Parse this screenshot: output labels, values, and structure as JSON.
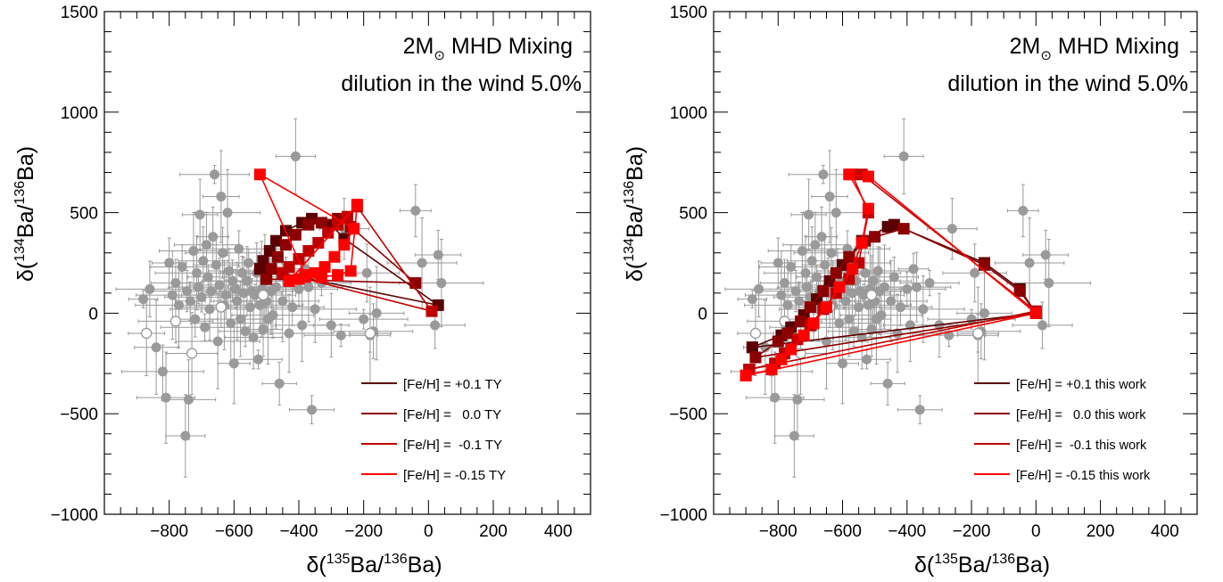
{
  "figure": {
    "background": "#ffffff",
    "axis_color": "#000000",
    "data_color": "#9a9a9a"
  },
  "chart_data": [
    {
      "type": "scatter",
      "title": "",
      "annotation": {
        "line1_prefix": "2M",
        "line1_sub": "⊙",
        "line1_suffix": " MHD Mixing",
        "line2": "dilution in the wind 5.0%"
      },
      "xlabel": {
        "pre": "δ(",
        "sup1": "135",
        "mid": "Ba/",
        "sup2": "136",
        "post": "Ba)"
      },
      "ylabel": {
        "pre": "δ(",
        "sup1": "134",
        "mid": "Ba/",
        "sup2": "136",
        "post": "Ba)"
      },
      "xlim": [
        -1000,
        500
      ],
      "ylim": [
        -1000,
        1500
      ],
      "xticks": [
        -800,
        -600,
        -400,
        -200,
        0,
        200,
        400
      ],
      "xtick_labels": [
        "−800",
        "−600",
        "−400",
        "−200",
        "0",
        "200",
        "400"
      ],
      "yticks": [
        -1000,
        -500,
        0,
        500,
        1000,
        1500
      ],
      "ytick_labels": [
        "−1000",
        "−500",
        "0",
        "500",
        "1000",
        "1500"
      ],
      "legend_position": "bottom-right",
      "series": [
        {
          "name": "[Fe/H] = +0.1 TY",
          "color": "#5a0000",
          "x": [
            -520,
            -510,
            -490,
            -470,
            -440,
            -390,
            -360,
            -300,
            -260,
            30,
            -520
          ],
          "y": [
            220,
            260,
            310,
            360,
            410,
            450,
            470,
            440,
            370,
            40,
            220
          ]
        },
        {
          "name": "[Fe/H] =   0.0 TY",
          "color": "#8b0000",
          "x": [
            -500,
            -485,
            -465,
            -440,
            -410,
            -370,
            -330,
            -280,
            -240,
            -40,
            -500
          ],
          "y": [
            170,
            220,
            280,
            340,
            390,
            440,
            450,
            470,
            430,
            150,
            170
          ]
        },
        {
          "name": "[Fe/H] =  -0.1 TY",
          "color": "#c00000",
          "x": [
            -450,
            -430,
            -400,
            -370,
            -340,
            -310,
            -280,
            -250,
            -220,
            10,
            -450
          ],
          "y": [
            200,
            230,
            270,
            310,
            350,
            400,
            440,
            480,
            530,
            10,
            200
          ]
        },
        {
          "name": "[Fe/H] = -0.15 TY",
          "color": "#ff0000",
          "x": [
            -430,
            -400,
            -380,
            -350,
            -320,
            -290,
            -260,
            -230,
            -520,
            -380,
            -330,
            -280,
            -240,
            -220,
            -430
          ],
          "y": [
            160,
            170,
            180,
            200,
            230,
            280,
            340,
            420,
            690,
            190,
            180,
            190,
            210,
            540,
            160
          ]
        }
      ]
    },
    {
      "type": "scatter",
      "title": "",
      "annotation": {
        "line1_prefix": "2M",
        "line1_sub": "⊙",
        "line1_suffix": " MHD Mixing",
        "line2": "dilution in the wind 5.0%"
      },
      "xlabel": {
        "pre": "δ(",
        "sup1": "135",
        "mid": "Ba/",
        "sup2": "136",
        "post": "Ba)"
      },
      "ylabel": {
        "pre": "δ(",
        "sup1": "134",
        "mid": "Ba/",
        "sup2": "136",
        "post": "Ba)"
      },
      "xlim": [
        -1000,
        500
      ],
      "ylim": [
        -1000,
        1500
      ],
      "xticks": [
        -800,
        -600,
        -400,
        -200,
        0,
        200,
        400
      ],
      "xtick_labels": [
        "−800",
        "−600",
        "−400",
        "−200",
        "0",
        "200",
        "400"
      ],
      "yticks": [
        -1000,
        -500,
        0,
        500,
        1000,
        1500
      ],
      "ytick_labels": [
        "−1000",
        "−500",
        "0",
        "500",
        "1000",
        "1500"
      ],
      "legend_position": "bottom-right",
      "series": [
        {
          "name": "[Fe/H] = +0.1 this work",
          "color": "#5a0000",
          "x": [
            -880,
            -790,
            -760,
            -720,
            -680,
            -640,
            -600,
            -540,
            -460,
            -440,
            -160,
            -50,
            0,
            -880
          ],
          "y": [
            -170,
            -110,
            -70,
            -10,
            70,
            160,
            240,
            360,
            430,
            440,
            250,
            120,
            0,
            -170
          ]
        },
        {
          "name": "[Fe/H] =   0.0 this work",
          "color": "#8b0000",
          "x": [
            -870,
            -800,
            -770,
            -730,
            -700,
            -660,
            -620,
            -580,
            -530,
            -500,
            -410,
            -160,
            -50,
            0,
            -870
          ],
          "y": [
            -220,
            -140,
            -100,
            -40,
            30,
            110,
            200,
            280,
            360,
            380,
            420,
            240,
            110,
            0,
            -220
          ]
        },
        {
          "name": "[Fe/H] =  -0.1 this work",
          "color": "#c00000",
          "x": [
            -890,
            -810,
            -780,
            -740,
            -700,
            -660,
            -620,
            -580,
            -550,
            -520,
            -570,
            -540,
            0,
            -890
          ],
          "y": [
            -280,
            -250,
            -200,
            -130,
            -60,
            20,
            100,
            170,
            250,
            500,
            690,
            690,
            10,
            -280
          ]
        },
        {
          "name": "[Fe/H] = -0.15 this work",
          "color": "#ff0000",
          "x": [
            -900,
            -820,
            -790,
            -760,
            -720,
            -690,
            -650,
            -610,
            -570,
            -540,
            -520,
            -580,
            -520,
            0,
            -900
          ],
          "y": [
            -310,
            -280,
            -230,
            -180,
            -110,
            -50,
            30,
            130,
            220,
            350,
            520,
            690,
            680,
            0,
            -310
          ]
        }
      ]
    }
  ],
  "measurements": {
    "filled": [
      [
        -880,
        70
      ],
      [
        -860,
        120
      ],
      [
        -840,
        -170
      ],
      [
        -820,
        -290
      ],
      [
        -810,
        -420
      ],
      [
        -800,
        250
      ],
      [
        -790,
        90
      ],
      [
        -780,
        150
      ],
      [
        -770,
        40
      ],
      [
        -760,
        230
      ],
      [
        -750,
        -610
      ],
      [
        -745,
        110
      ],
      [
        -740,
        -430
      ],
      [
        -735,
        60
      ],
      [
        -725,
        310
      ],
      [
        -720,
        -30
      ],
      [
        -715,
        200
      ],
      [
        -710,
        130
      ],
      [
        -705,
        490
      ],
      [
        -700,
        80
      ],
      [
        -695,
        260
      ],
      [
        -690,
        -70
      ],
      [
        -685,
        340
      ],
      [
        -680,
        180
      ],
      [
        -675,
        20
      ],
      [
        -670,
        110
      ],
      [
        -665,
        380
      ],
      [
        -660,
        690
      ],
      [
        -655,
        240
      ],
      [
        -650,
        -140
      ],
      [
        -645,
        140
      ],
      [
        -640,
        580
      ],
      [
        -635,
        300
      ],
      [
        -630,
        40
      ],
      [
        -625,
        90
      ],
      [
        -620,
        500
      ],
      [
        -615,
        210
      ],
      [
        -610,
        -50
      ],
      [
        -605,
        160
      ],
      [
        -600,
        -250
      ],
      [
        -595,
        120
      ],
      [
        -590,
        60
      ],
      [
        -585,
        320
      ],
      [
        -580,
        -30
      ],
      [
        -575,
        200
      ],
      [
        -570,
        100
      ],
      [
        -565,
        -90
      ],
      [
        -560,
        160
      ],
      [
        -555,
        250
      ],
      [
        -550,
        30
      ],
      [
        -545,
        110
      ],
      [
        -540,
        -120
      ],
      [
        -535,
        90
      ],
      [
        -530,
        200
      ],
      [
        -525,
        -230
      ],
      [
        -520,
        40
      ],
      [
        -515,
        120
      ],
      [
        -510,
        -80
      ],
      [
        -505,
        160
      ],
      [
        -500,
        60
      ],
      [
        -495,
        -30
      ],
      [
        -490,
        210
      ],
      [
        -485,
        110
      ],
      [
        -480,
        -10
      ],
      [
        -470,
        130
      ],
      [
        -460,
        -350
      ],
      [
        -450,
        60
      ],
      [
        -440,
        180
      ],
      [
        -430,
        -100
      ],
      [
        -420,
        30
      ],
      [
        -410,
        780
      ],
      [
        -400,
        120
      ],
      [
        -390,
        -60
      ],
      [
        -380,
        220
      ],
      [
        -370,
        130
      ],
      [
        -360,
        -480
      ],
      [
        -350,
        20
      ],
      [
        -330,
        150
      ],
      [
        -300,
        -60
      ],
      [
        -270,
        -110
      ],
      [
        -260,
        420
      ],
      [
        -200,
        -30
      ],
      [
        -190,
        200
      ],
      [
        -180,
        -110
      ],
      [
        -170,
        -90
      ],
      [
        -160,
        0
      ],
      [
        -40,
        510
      ],
      [
        -20,
        250
      ],
      [
        30,
        290
      ],
      [
        40,
        150
      ],
      [
        20,
        -60
      ]
    ],
    "open": [
      [
        -870,
        -100
      ],
      [
        -780,
        -40
      ],
      [
        -730,
        -200
      ],
      [
        -640,
        30
      ],
      [
        -510,
        90
      ],
      [
        -180,
        -100
      ]
    ]
  }
}
